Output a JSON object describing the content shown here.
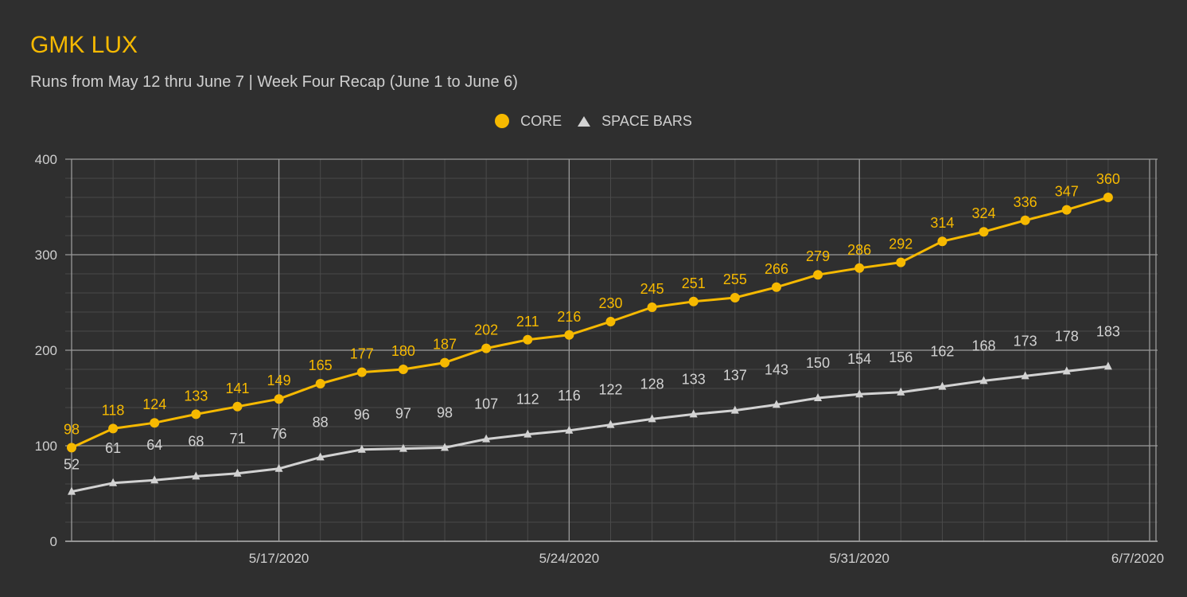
{
  "chart_data": {
    "type": "line",
    "title": "GMK LUX",
    "subtitle": "Runs from May 12 thru June 7 | Week Four Recap (June 1 to June 6)",
    "x_tick_labels": [
      "5/17/2020",
      "5/24/2020",
      "5/31/2020",
      "6/7/2020"
    ],
    "x_tick_days": [
      5,
      12,
      19,
      26
    ],
    "y_ticks": [
      0,
      100,
      200,
      300,
      400
    ],
    "ylim": [
      0,
      400
    ],
    "xlim_days": [
      0,
      26
    ],
    "series": [
      {
        "name": "CORE",
        "color": "#f6b900",
        "marker": "circle",
        "values": [
          98,
          118,
          124,
          133,
          141,
          149,
          165,
          177,
          180,
          187,
          202,
          211,
          216,
          230,
          245,
          251,
          255,
          266,
          279,
          286,
          292,
          314,
          324,
          336,
          347,
          360
        ]
      },
      {
        "name": "SPACE BARS",
        "color": "#d2d2d2",
        "marker": "triangle",
        "values": [
          52,
          61,
          64,
          68,
          71,
          76,
          88,
          96,
          97,
          98,
          107,
          112,
          116,
          122,
          128,
          133,
          137,
          143,
          150,
          154,
          156,
          162,
          168,
          173,
          178,
          183
        ]
      }
    ]
  },
  "colors": {
    "background": "#2f2f2f",
    "grid_major": "#9a9a9a",
    "grid_minor": "#4a4a4a",
    "axis_text": "#cfcfcf"
  }
}
